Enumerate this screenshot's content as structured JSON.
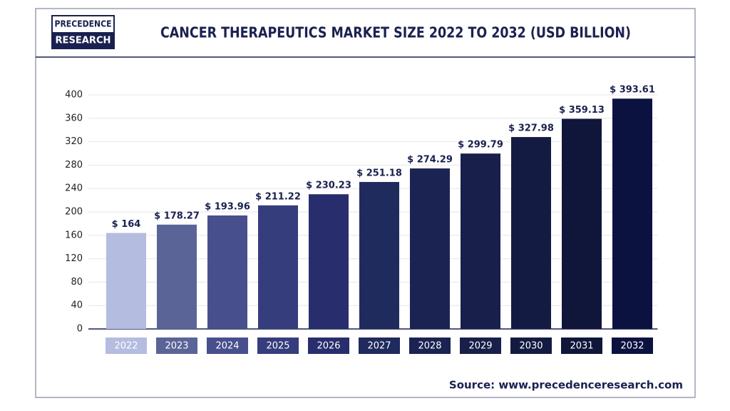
{
  "logo": {
    "top": "PRECEDENCE",
    "bottom": "RESEARCH"
  },
  "chart_data": {
    "type": "bar",
    "title": "CANCER THERAPEUTICS MARKET SIZE 2022 TO 2032 (USD BILLION)",
    "categories": [
      "2022",
      "2023",
      "2024",
      "2025",
      "2026",
      "2027",
      "2028",
      "2029",
      "2030",
      "2031",
      "2032"
    ],
    "values": [
      164,
      178.27,
      193.96,
      211.22,
      230.23,
      251.18,
      274.29,
      299.79,
      327.98,
      359.13,
      393.61
    ],
    "value_labels": [
      "$ 164",
      "$ 178.27",
      "$ 193.96",
      "$ 211.22",
      "$ 230.23",
      "$ 251.18",
      "$ 274.29",
      "$ 299.79",
      "$ 327.98",
      "$ 359.13",
      "$ 393.61"
    ],
    "colors": [
      "#b4bce0",
      "#5a6497",
      "#474f8c",
      "#363d7d",
      "#282e6d",
      "#1f2a5d",
      "#1a2351",
      "#171f4a",
      "#141b42",
      "#10163a",
      "#0c1240"
    ],
    "ylim": [
      0,
      400
    ],
    "yticks": [
      0,
      40,
      80,
      120,
      160,
      200,
      240,
      280,
      320,
      360,
      400
    ],
    "grid": true,
    "source": "Source: www.precedenceresearch.com"
  }
}
